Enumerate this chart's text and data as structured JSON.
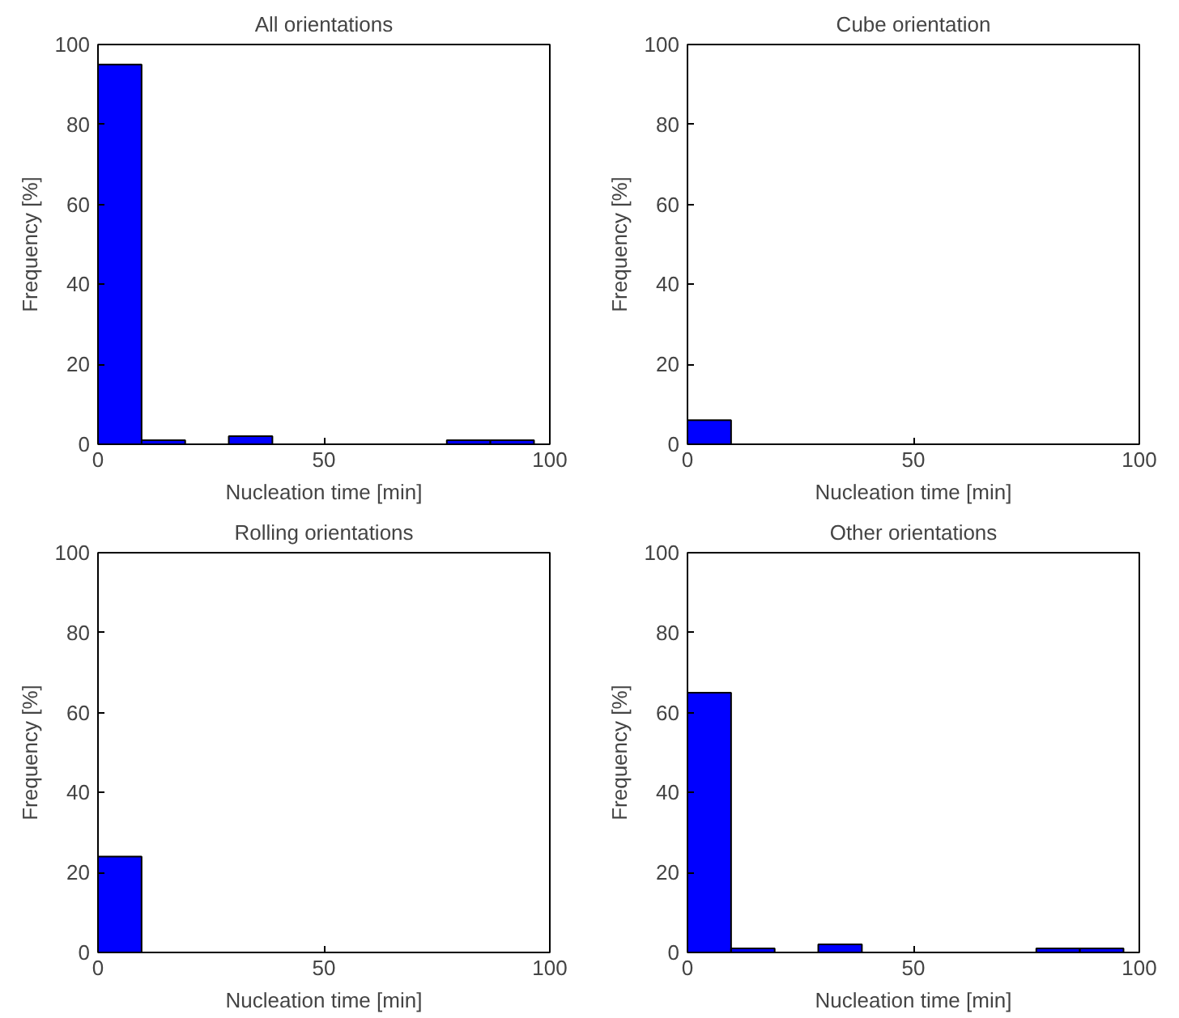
{
  "chart_data": [
    {
      "type": "histogram",
      "title": "All orientations",
      "xlabel": "Nucleation time [min]",
      "ylabel": "Frequency [%]",
      "bins": [
        0,
        9.65,
        19.3,
        28.95,
        38.6,
        48.25,
        57.9,
        67.55,
        77.2,
        86.85,
        96.5
      ],
      "values": [
        95,
        1,
        0,
        2,
        0,
        0,
        0,
        0,
        1,
        1
      ],
      "color": "#0000ff",
      "xlim": [
        0,
        100
      ],
      "ylim": [
        0,
        100
      ],
      "xticks": [
        0,
        50,
        100
      ],
      "yticks": [
        0,
        20,
        40,
        60,
        80,
        100
      ],
      "grid": false
    },
    {
      "type": "histogram",
      "title": "Cube orientation",
      "xlabel": "Nucleation time [min]",
      "ylabel": "Frequency [%]",
      "bins": [
        0,
        9.65,
        19.3,
        28.95,
        38.6,
        48.25,
        57.9,
        67.55,
        77.2,
        86.85,
        96.5
      ],
      "values": [
        6,
        0,
        0,
        0,
        0,
        0,
        0,
        0,
        0,
        0
      ],
      "color": "#0000ff",
      "xlim": [
        0,
        100
      ],
      "ylim": [
        0,
        100
      ],
      "xticks": [
        0,
        50,
        100
      ],
      "yticks": [
        0,
        20,
        40,
        60,
        80,
        100
      ],
      "grid": false
    },
    {
      "type": "histogram",
      "title": "Rolling orientations",
      "xlabel": "Nucleation time [min]",
      "ylabel": "Frequency [%]",
      "bins": [
        0,
        9.65,
        19.3,
        28.95,
        38.6,
        48.25,
        57.9,
        67.55,
        77.2,
        86.85,
        96.5
      ],
      "values": [
        24,
        0,
        0,
        0,
        0,
        0,
        0,
        0,
        0,
        0
      ],
      "color": "#0000ff",
      "xlim": [
        0,
        100
      ],
      "ylim": [
        0,
        100
      ],
      "xticks": [
        0,
        50,
        100
      ],
      "yticks": [
        0,
        20,
        40,
        60,
        80,
        100
      ],
      "grid": false
    },
    {
      "type": "histogram",
      "title": "Other orientations",
      "xlabel": "Nucleation time [min]",
      "ylabel": "Frequency [%]",
      "bins": [
        0,
        9.65,
        19.3,
        28.95,
        38.6,
        48.25,
        57.9,
        67.55,
        77.2,
        86.85,
        96.5
      ],
      "values": [
        65,
        1,
        0,
        2,
        0,
        0,
        0,
        0,
        1,
        1
      ],
      "color": "#0000ff",
      "xlim": [
        0,
        100
      ],
      "ylim": [
        0,
        100
      ],
      "xticks": [
        0,
        50,
        100
      ],
      "yticks": [
        0,
        20,
        40,
        60,
        80,
        100
      ],
      "grid": false
    }
  ]
}
